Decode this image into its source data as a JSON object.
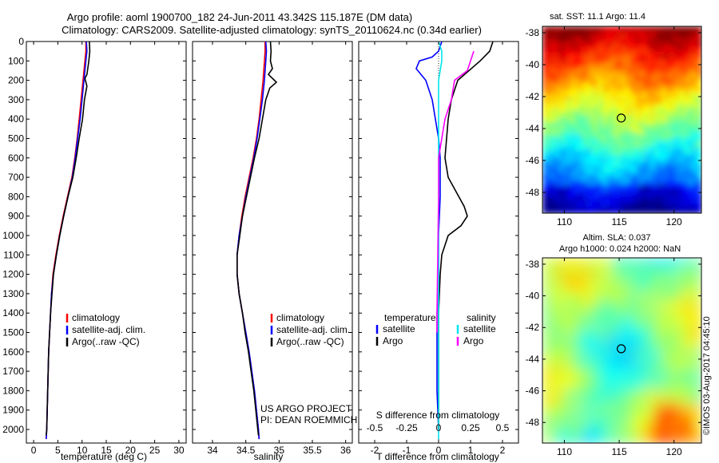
{
  "title": {
    "line1": "Argo profile: aoml 1900700_182 24-Jun-2011 43.342S 115.187E (DM data)",
    "line2": "Climatology: CARS2009. Satellite-adjusted climatology: synTS_20110624.nc (0.34d earlier)"
  },
  "credit": "©IMOS 03-Aug-2017 04:45:10",
  "colors": {
    "climatology": "#ff0000",
    "satellite": "#0000ff",
    "argo": "#000000",
    "sat_salinity": "#00e5ee",
    "argo_salinity": "#ff00ff"
  },
  "chart_data": [
    {
      "id": "temperature",
      "type": "line",
      "xlabel": "temperature (deg C)",
      "ylabel": "",
      "xlim": [
        -1.5,
        31.5
      ],
      "ylim": [
        2070,
        0
      ],
      "xticks": [
        0,
        5,
        10,
        15,
        20,
        25,
        30
      ],
      "yticks": [
        0,
        100,
        200,
        300,
        400,
        500,
        600,
        700,
        800,
        900,
        1000,
        1100,
        1200,
        1300,
        1400,
        1500,
        1600,
        1700,
        1800,
        1900,
        2000
      ],
      "legend": [
        "climatology",
        "satellite-adj. clim.",
        "Argo(..raw -QC)"
      ],
      "series": [
        {
          "name": "climatology",
          "color": "#ff0000",
          "points": [
            [
              10.8,
              0
            ],
            [
              10.8,
              50
            ],
            [
              10.6,
              100
            ],
            [
              10.2,
              200
            ],
            [
              9.8,
              300
            ],
            [
              9.4,
              400
            ],
            [
              9.0,
              500
            ],
            [
              8.5,
              600
            ],
            [
              7.9,
              700
            ],
            [
              7.0,
              800
            ],
            [
              6.1,
              900
            ],
            [
              5.3,
              1000
            ],
            [
              4.6,
              1100
            ],
            [
              4.0,
              1200
            ],
            [
              3.7,
              1300
            ],
            [
              3.5,
              1400
            ],
            [
              3.3,
              1500
            ],
            [
              3.1,
              1600
            ],
            [
              3.0,
              1700
            ],
            [
              2.9,
              1800
            ],
            [
              2.8,
              1900
            ],
            [
              2.7,
              2000
            ],
            [
              2.6,
              2050
            ]
          ]
        },
        {
          "name": "satellite-adj. clim.",
          "color": "#0000ff",
          "points": [
            [
              10.9,
              0
            ],
            [
              11.0,
              50
            ],
            [
              10.8,
              100
            ],
            [
              10.4,
              200
            ],
            [
              10.0,
              300
            ],
            [
              9.6,
              400
            ],
            [
              9.1,
              500
            ],
            [
              8.6,
              600
            ],
            [
              8.0,
              700
            ],
            [
              7.1,
              800
            ],
            [
              6.2,
              900
            ],
            [
              5.4,
              1000
            ],
            [
              4.7,
              1100
            ],
            [
              4.1,
              1200
            ],
            [
              3.7,
              1300
            ],
            [
              3.5,
              1400
            ],
            [
              3.3,
              1500
            ],
            [
              3.1,
              1600
            ],
            [
              3.0,
              1700
            ],
            [
              2.9,
              1800
            ],
            [
              2.8,
              1900
            ],
            [
              2.7,
              2000
            ],
            [
              2.6,
              2050
            ]
          ]
        },
        {
          "name": "Argo(..raw -QC)",
          "color": "#000000",
          "points": [
            [
              11.5,
              0
            ],
            [
              11.6,
              50
            ],
            [
              11.4,
              100
            ],
            [
              11.0,
              170
            ],
            [
              10.6,
              190
            ],
            [
              11.0,
              230
            ],
            [
              10.5,
              300
            ],
            [
              10.1,
              400
            ],
            [
              9.4,
              500
            ],
            [
              8.8,
              600
            ],
            [
              8.1,
              700
            ],
            [
              7.1,
              800
            ],
            [
              6.2,
              900
            ],
            [
              5.4,
              1000
            ],
            [
              4.7,
              1100
            ],
            [
              4.1,
              1200
            ],
            [
              3.8,
              1300
            ],
            [
              3.5,
              1400
            ],
            [
              3.3,
              1500
            ],
            [
              3.1,
              1600
            ],
            [
              3.0,
              1700
            ],
            [
              2.9,
              1800
            ],
            [
              2.8,
              1900
            ],
            [
              2.7,
              2000
            ],
            [
              2.6,
              2030
            ]
          ]
        }
      ]
    },
    {
      "id": "salinity",
      "type": "line",
      "xlabel": "salinity",
      "ylabel": "",
      "xlim": [
        33.7,
        36.1
      ],
      "ylim": [
        2070,
        0
      ],
      "xticks": [
        34,
        34.5,
        35,
        35.5,
        36
      ],
      "legend": [
        "climatology",
        "satellite-adj. clim.",
        "Argo(..raw -QC)"
      ],
      "annotation": [
        "US ARGO PROJECT",
        "PI: DEAN ROEMMICH"
      ],
      "series": [
        {
          "name": "climatology",
          "color": "#ff0000",
          "points": [
            [
              34.79,
              0
            ],
            [
              34.79,
              50
            ],
            [
              34.78,
              100
            ],
            [
              34.76,
              200
            ],
            [
              34.73,
              300
            ],
            [
              34.7,
              400
            ],
            [
              34.66,
              500
            ],
            [
              34.61,
              600
            ],
            [
              34.55,
              700
            ],
            [
              34.49,
              800
            ],
            [
              34.44,
              900
            ],
            [
              34.4,
              1000
            ],
            [
              34.37,
              1100
            ],
            [
              34.37,
              1200
            ],
            [
              34.4,
              1300
            ],
            [
              34.45,
              1400
            ],
            [
              34.5,
              1500
            ],
            [
              34.55,
              1600
            ],
            [
              34.59,
              1700
            ],
            [
              34.63,
              1800
            ],
            [
              34.66,
              1900
            ],
            [
              34.69,
              2000
            ],
            [
              34.7,
              2050
            ]
          ]
        },
        {
          "name": "satellite-adj. clim.",
          "color": "#0000ff",
          "points": [
            [
              34.8,
              0
            ],
            [
              34.81,
              50
            ],
            [
              34.8,
              100
            ],
            [
              34.78,
              200
            ],
            [
              34.75,
              300
            ],
            [
              34.71,
              400
            ],
            [
              34.67,
              500
            ],
            [
              34.62,
              600
            ],
            [
              34.56,
              700
            ],
            [
              34.5,
              800
            ],
            [
              34.45,
              900
            ],
            [
              34.4,
              1000
            ],
            [
              34.37,
              1100
            ],
            [
              34.37,
              1200
            ],
            [
              34.4,
              1300
            ],
            [
              34.45,
              1400
            ],
            [
              34.5,
              1500
            ],
            [
              34.55,
              1600
            ],
            [
              34.59,
              1700
            ],
            [
              34.63,
              1800
            ],
            [
              34.66,
              1900
            ],
            [
              34.69,
              2000
            ],
            [
              34.7,
              2050
            ]
          ]
        },
        {
          "name": "Argo(..raw -QC)",
          "color": "#000000",
          "points": [
            [
              34.87,
              0
            ],
            [
              34.88,
              50
            ],
            [
              34.87,
              100
            ],
            [
              34.9,
              140
            ],
            [
              34.84,
              170
            ],
            [
              34.96,
              210
            ],
            [
              34.86,
              240
            ],
            [
              34.8,
              300
            ],
            [
              34.75,
              400
            ],
            [
              34.7,
              500
            ],
            [
              34.63,
              600
            ],
            [
              34.57,
              700
            ],
            [
              34.51,
              800
            ],
            [
              34.45,
              900
            ],
            [
              34.41,
              1000
            ],
            [
              34.37,
              1100
            ],
            [
              34.37,
              1200
            ],
            [
              34.4,
              1300
            ],
            [
              34.45,
              1400
            ],
            [
              34.49,
              1500
            ],
            [
              34.54,
              1600
            ],
            [
              34.58,
              1700
            ],
            [
              34.62,
              1800
            ],
            [
              34.65,
              1900
            ],
            [
              34.68,
              2000
            ],
            [
              34.69,
              2030
            ]
          ]
        }
      ]
    },
    {
      "id": "difference",
      "type": "line",
      "xlabel": "T difference from climatology",
      "top_label": "S difference from climatology",
      "ylabel": "",
      "xlim": [
        -2.5,
        2.5
      ],
      "ylim": [
        2070,
        0
      ],
      "xticks": [
        -2,
        -1,
        0,
        1,
        2
      ],
      "top_ticks": [
        "-0.5",
        "-0.25",
        "0",
        "0.25",
        "0.5"
      ],
      "top_tick_T": [
        -2,
        -1,
        0,
        1,
        2
      ],
      "legend_groups": [
        {
          "title": "temperature",
          "items": [
            "satellite",
            "Argo"
          ]
        },
        {
          "title": "salinity",
          "items": [
            "satellite",
            "Argo"
          ]
        }
      ],
      "series": [
        {
          "name": "temperature satellite",
          "color": "#0000ff",
          "points": [
            [
              0.1,
              0
            ],
            [
              0.0,
              50
            ],
            [
              -0.2,
              80
            ],
            [
              -0.6,
              100
            ],
            [
              -0.7,
              140
            ],
            [
              -0.6,
              160
            ],
            [
              -0.4,
              200
            ],
            [
              -0.3,
              250
            ],
            [
              -0.2,
              300
            ],
            [
              -0.1,
              400
            ],
            [
              0.0,
              500
            ],
            [
              0.05,
              600
            ],
            [
              0.05,
              800
            ],
            [
              0.0,
              1000
            ],
            [
              0.0,
              1300
            ],
            [
              -0.05,
              1400
            ],
            [
              -0.05,
              1800
            ],
            [
              0.0,
              2000
            ]
          ]
        },
        {
          "name": "temperature Argo",
          "color": "#000000",
          "points": [
            [
              1.7,
              0
            ],
            [
              1.6,
              50
            ],
            [
              1.3,
              100
            ],
            [
              0.6,
              200
            ],
            [
              0.4,
              300
            ],
            [
              0.3,
              400
            ],
            [
              0.2,
              600
            ],
            [
              0.3,
              700
            ],
            [
              0.8,
              850
            ],
            [
              0.9,
              900
            ],
            [
              0.7,
              950
            ],
            [
              0.3,
              1000
            ],
            [
              0.1,
              1100
            ],
            [
              0.05,
              1200
            ],
            [
              0.0,
              1400
            ],
            [
              0.0,
              1700
            ],
            [
              0.0,
              2000
            ]
          ]
        },
        {
          "name": "salinity satellite",
          "color": "#00e5ee",
          "points": [
            [
              0.0,
              0
            ],
            [
              0.1,
              50
            ],
            [
              0.1,
              100
            ],
            [
              0.0,
              200
            ],
            [
              0.0,
              400
            ],
            [
              0.0,
              800
            ],
            [
              0.0,
              1200
            ],
            [
              0.0,
              2000
            ],
            [
              0.0,
              2050
            ]
          ]
        },
        {
          "name": "salinity Argo",
          "color": "#ff00ff",
          "points": [
            [
              1.1,
              50
            ],
            [
              1.0,
              100
            ],
            [
              0.9,
              150
            ],
            [
              0.5,
              200
            ],
            [
              0.4,
              300
            ],
            [
              0.2,
              400
            ],
            [
              0.1,
              500
            ],
            [
              0.0,
              600
            ],
            [
              0.0,
              800
            ],
            [
              -0.05,
              1400
            ],
            [
              -0.05,
              1500
            ]
          ]
        }
      ]
    },
    {
      "id": "sst_map",
      "type": "heatmap",
      "title": "sat. SST: 11.1  Argo: 11.4",
      "xlim": [
        108,
        122.5
      ],
      "ylim": [
        -49.3,
        -37.6
      ],
      "xticks": [
        110,
        115,
        120
      ],
      "yticks": [
        -38,
        -40,
        -42,
        -44,
        -46,
        -48
      ],
      "marker": {
        "lon": 115.187,
        "lat": -43.342
      }
    },
    {
      "id": "sla_map",
      "type": "heatmap",
      "title": "Altim. SLA: 0.037",
      "subtitle": "Argo h1000: 0.024  h2000: NaN",
      "xlim": [
        108,
        122.5
      ],
      "ylim": [
        -49.3,
        -37.6
      ],
      "xticks": [
        110,
        115,
        120
      ],
      "yticks": [
        -38,
        -40,
        -42,
        -44,
        -46,
        -48
      ],
      "marker": {
        "lon": 115.187,
        "lat": -43.342
      }
    }
  ]
}
